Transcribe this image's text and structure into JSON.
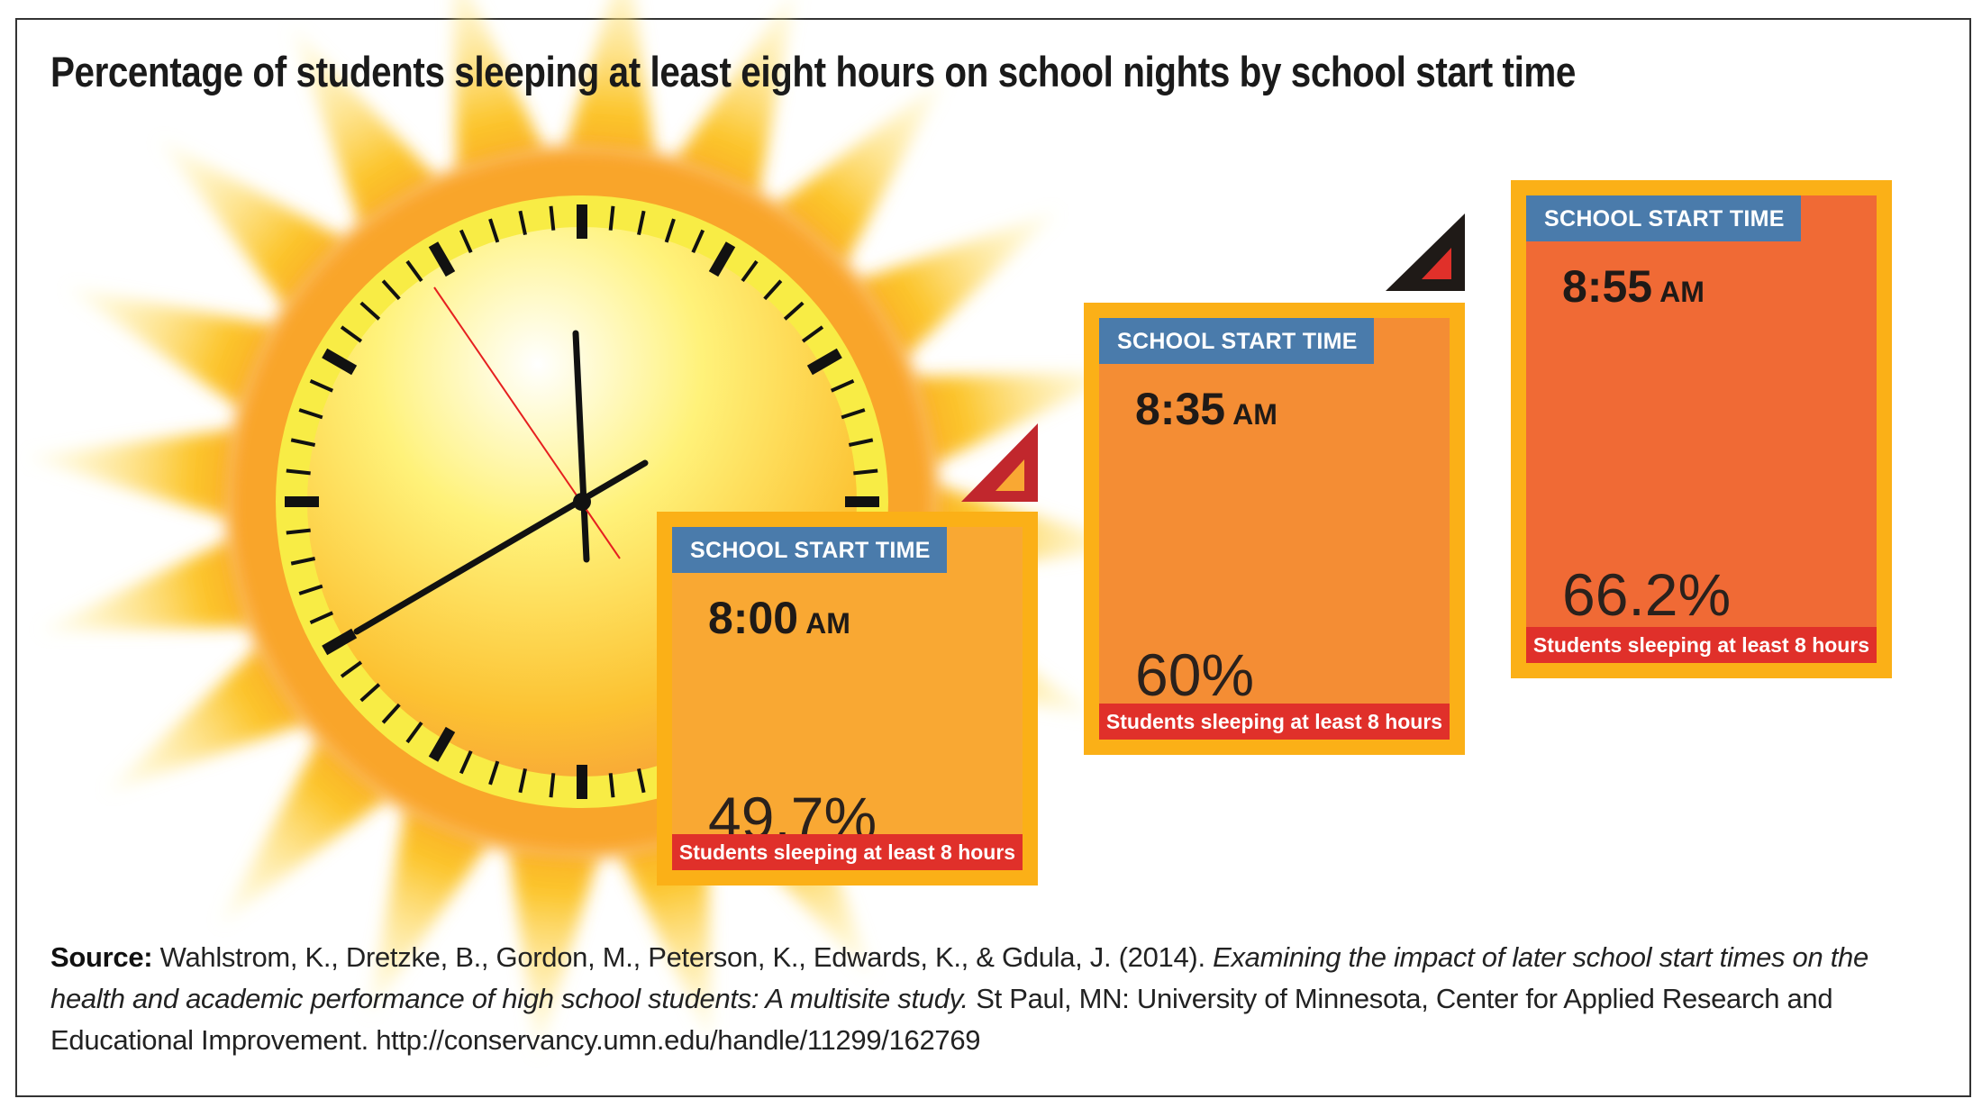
{
  "chart_data": {
    "type": "bar",
    "title": "Percentage of students sleeping at least eight hours on school nights by school start time",
    "categories": [
      "8:00",
      "8:35",
      "8:55"
    ],
    "category_suffix": "AM",
    "category_label": "SCHOOL START TIME",
    "series": [
      {
        "name": "Students sleeping at least 8 hours",
        "values": [
          49.7,
          60,
          66.2
        ]
      }
    ],
    "value_labels": [
      "49.7%",
      "60%",
      "66.2%"
    ],
    "ylim": [
      0,
      100
    ],
    "colors": {
      "box_border": "#fbb017",
      "fills": [
        "#f9a833",
        "#f48d34",
        "#f06a35"
      ],
      "label_bg": "#4a7bab",
      "bar_bg": "#e0302a"
    }
  },
  "source": {
    "label": "Source:",
    "authors": "Wahlstrom, K., Dretzke, B., Gordon, M., Peterson, K., Edwards, K., & Gdula, J. (2014).",
    "work_title": "Examining the impact of later school start times on the health and academic performance of high school students: A multisite study.",
    "publisher": "St Paul, MN: University of Minnesota, Center for Applied Research and Educational Improvement. http://conservancy.umn.edu/handle/11299/162769"
  }
}
